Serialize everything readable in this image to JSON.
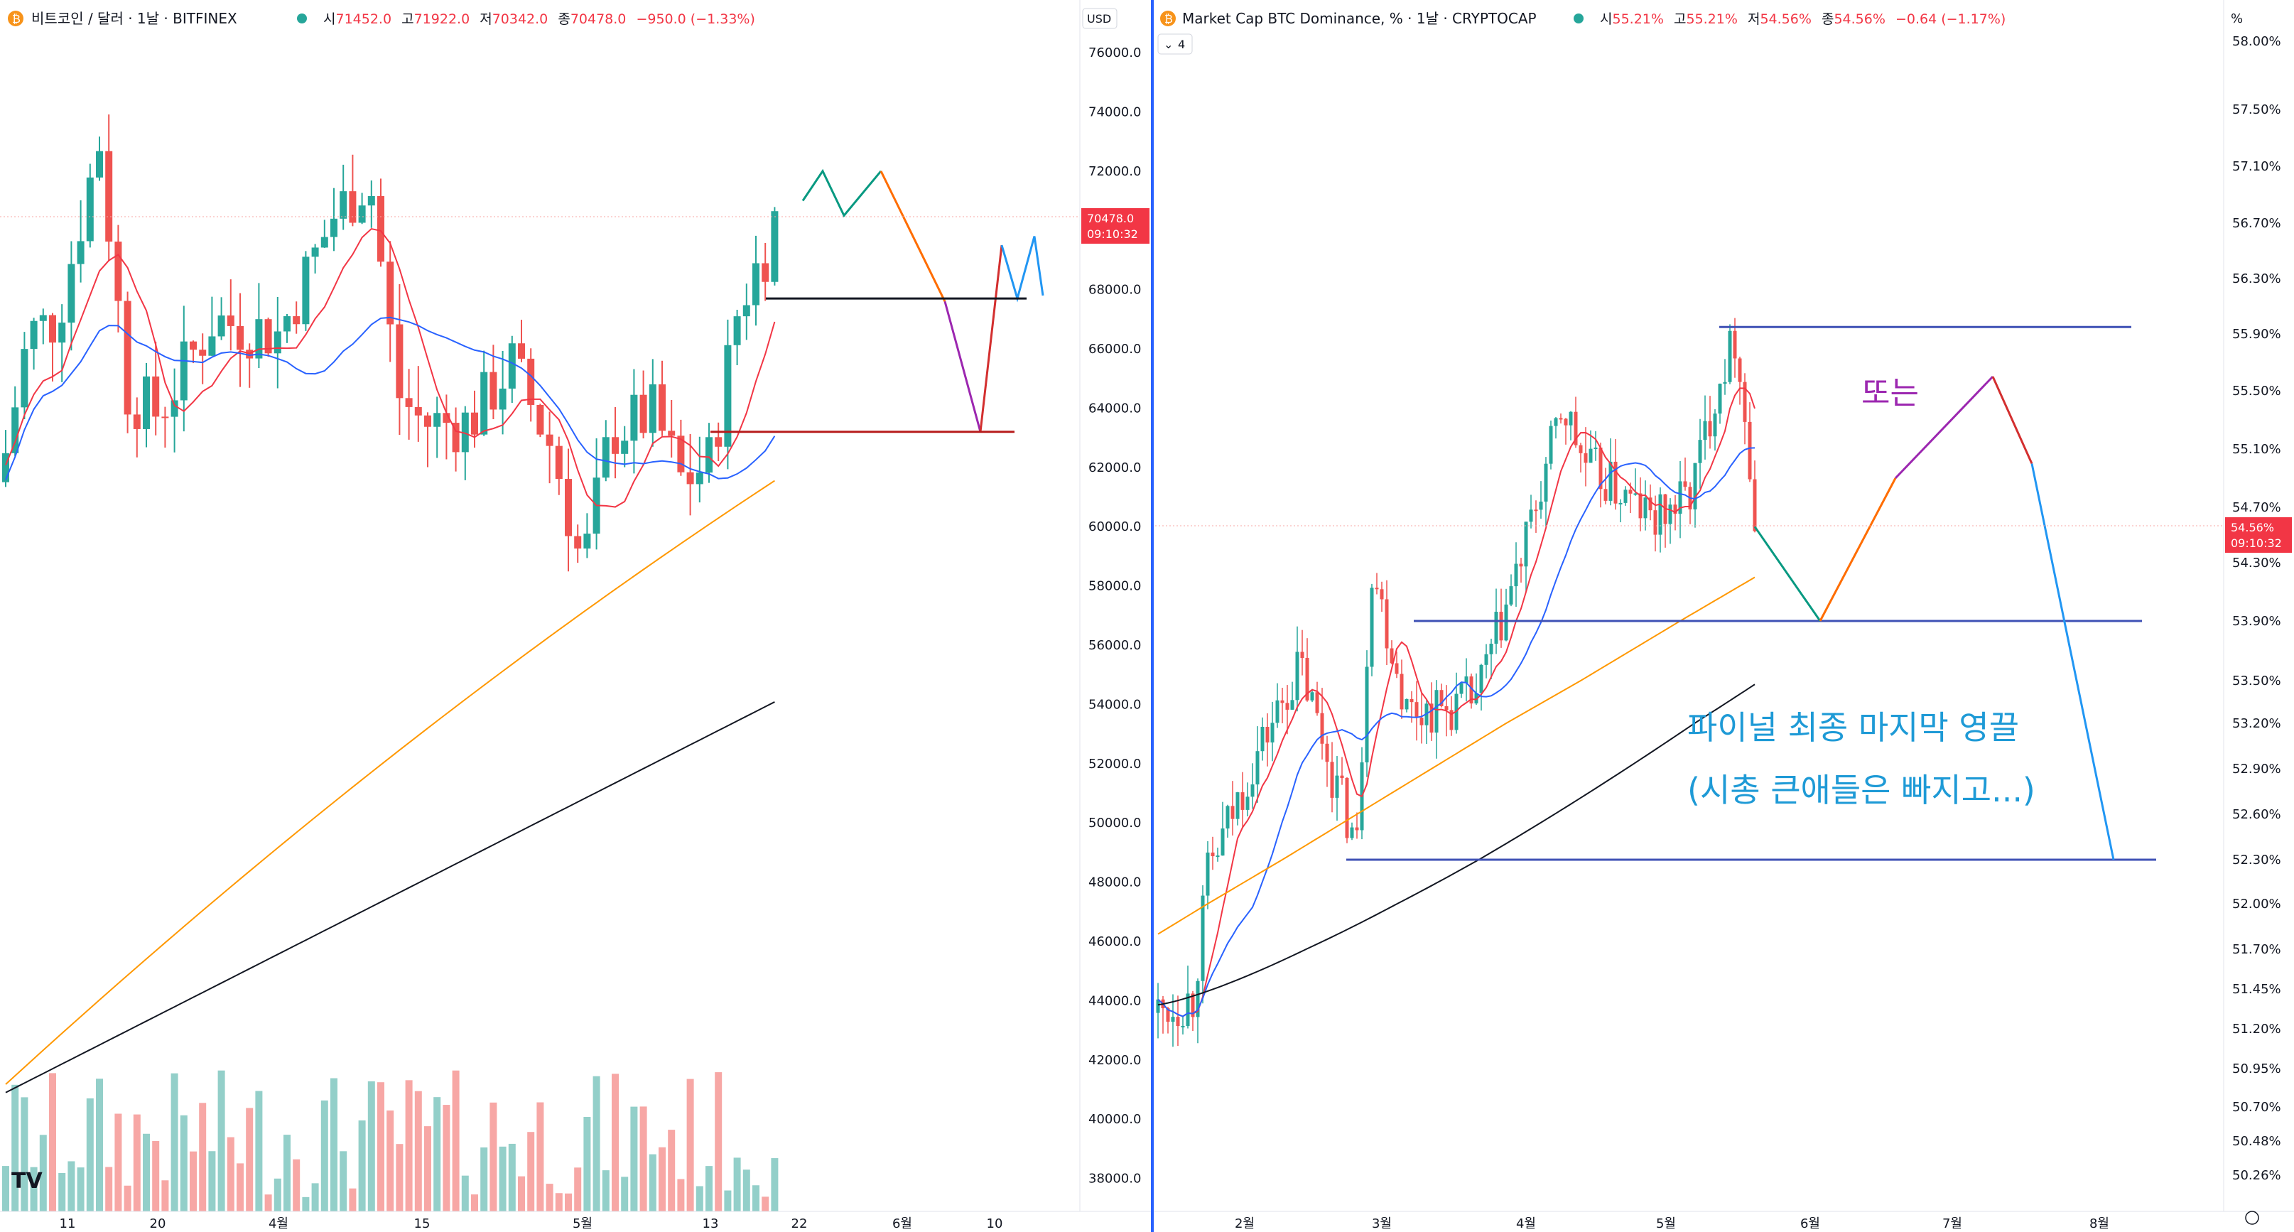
{
  "left_pane": {
    "title": "비트코인 / 달러 · 1날 · BITFINEX",
    "quote": {
      "o_label": "시",
      "o": "71452.0",
      "h_label": "고",
      "h": "71922.0",
      "l_label": "저",
      "l": "70342.0",
      "c_label": "종",
      "c": "70478.0",
      "chg": "−950.0 (−1.33%)"
    },
    "currency": "USD",
    "price_tag": "70478.0",
    "timer_tag": "09:10:32",
    "logo": "TV"
  },
  "right_pane": {
    "title": "Market Cap BTC Dominance, % · 1날 · CRYPTOCAP",
    "quote": {
      "o_label": "시",
      "o": "55.21%",
      "h_label": "고",
      "h": "55.21%",
      "l_label": "저",
      "l": "54.56%",
      "c_label": "종",
      "c": "54.56%",
      "chg": "−0.64 (−1.17%)"
    },
    "indicator_count": "4",
    "unit": "%",
    "price_tag": "54.56%",
    "timer_tag": "09:10:32",
    "annotations": {
      "or_label": "또는",
      "line1": "파이널 최종 마지막 영끌",
      "line2": "(시총 큰애들은 빠지고...)"
    }
  },
  "chart_data": [
    {
      "type": "candlestick",
      "title": "비트코인 / 달러 · 1날 · BITFINEX",
      "y_axis": {
        "range": [
          37000,
          77000
        ],
        "ticks": [
          "76000.0",
          "74000.0",
          "72000.0",
          "70000.0",
          "68000.0",
          "66000.0",
          "64000.0",
          "62000.0",
          "60000.0",
          "58000.0",
          "56000.0",
          "54000.0",
          "52000.0",
          "50000.0",
          "48000.0",
          "46000.0",
          "44000.0",
          "42000.0",
          "40000.0",
          "38000.0"
        ]
      },
      "x_axis": {
        "ticks": [
          "11",
          "20",
          "4월",
          "15",
          "5월",
          "13",
          "22",
          "6월",
          "10"
        ]
      },
      "last_price": 70478.0,
      "approx_closes_by_date": {
        "11": 67000,
        "20": 63500,
        "4월": 66500,
        "15": 63500,
        "5월": 58500,
        "13": 62000,
        "22": 70478
      },
      "moving_averages": [
        "MA short (red)",
        "MA mid (blue)",
        "MA long (orange)",
        "MA longest (black)"
      ],
      "projection_paths": [
        {
          "color": "green",
          "points": [
            [
              1,
              71000
            ],
            [
              2,
              72000
            ],
            [
              3,
              70500
            ],
            [
              4,
              72000
            ]
          ]
        },
        {
          "color": "orange",
          "points": [
            [
              4,
              72000
            ],
            [
              5,
              67600
            ]
          ]
        },
        {
          "color": "purple",
          "points": [
            [
              5,
              67600
            ],
            [
              6,
              63200
            ]
          ]
        },
        {
          "color": "red",
          "points": [
            [
              6,
              63200
            ],
            [
              7,
              69500
            ]
          ]
        },
        {
          "color": "blue",
          "points": [
            [
              7,
              69500
            ],
            [
              8,
              67700
            ],
            [
              9,
              69800
            ],
            [
              10,
              67800
            ],
            [
              11,
              69800
            ]
          ]
        }
      ],
      "horizontal_levels": [
        67700,
        63200
      ],
      "grid": false
    },
    {
      "type": "candlestick",
      "title": "Market Cap BTC Dominance, % · 1날 · CRYPTOCAP",
      "y_axis": {
        "range": [
          50.1,
          58.1
        ],
        "ticks": [
          "58.00%",
          "57.50%",
          "57.10%",
          "56.70%",
          "56.30%",
          "55.90%",
          "55.50%",
          "55.10%",
          "54.70%",
          "54.30%",
          "53.90%",
          "53.50%",
          "53.20%",
          "52.90%",
          "52.60%",
          "52.30%",
          "52.00%",
          "51.70%",
          "51.45%",
          "51.20%",
          "50.95%",
          "50.70%",
          "50.48%",
          "50.26%"
        ]
      },
      "x_axis": {
        "ticks": [
          "2월",
          "3월",
          "4월",
          "5월",
          "6월",
          "7월",
          "8월"
        ]
      },
      "last_price": 54.56,
      "approx_closes_by_month": {
        "2월": 52.0,
        "3월": 53.5,
        "4월": 54.6,
        "5월": 55.2,
        "now": 54.56
      },
      "moving_averages": [
        "MA short (red)",
        "MA mid (blue)",
        "MA long (orange)",
        "MA longest (black)"
      ],
      "projection_paths": [
        {
          "color": "green",
          "points": [
            [
              "now",
              54.56
            ],
            [
              "6월",
              53.9
            ]
          ]
        },
        {
          "color": "orange",
          "points": [
            [
              "6월",
              53.9
            ],
            [
              "6월+",
              54.9
            ]
          ]
        },
        {
          "color": "purple",
          "points": [
            [
              "6월+",
              54.9
            ],
            [
              "7월",
              55.6
            ]
          ]
        },
        {
          "color": "red",
          "points": [
            [
              "7월",
              55.6
            ],
            [
              "7월+",
              55.0
            ]
          ]
        },
        {
          "color": "blue",
          "points": [
            [
              "7월+",
              55.0
            ],
            [
              "8월",
              52.3
            ]
          ]
        }
      ],
      "horizontal_levels": [
        55.95,
        53.9,
        52.3
      ],
      "grid": false
    }
  ],
  "colors": {
    "up": "#26a69a",
    "down": "#ef5350",
    "vol_up": "#93cfc9",
    "vol_down": "#f7a7a5",
    "ma_red": "#f23645",
    "ma_blue": "#2962ff",
    "ma_orange": "#ff9800",
    "ma_black": "#131722",
    "proj_green": "#089981",
    "proj_orange": "#ff6d00",
    "proj_purple": "#9c27b0",
    "proj_red": "#d32f2f",
    "proj_blue": "#2196f3",
    "hline_blue": "#3f51b5",
    "anno_cyan": "#1e9ad6",
    "anno_purple": "#9c27b0"
  }
}
